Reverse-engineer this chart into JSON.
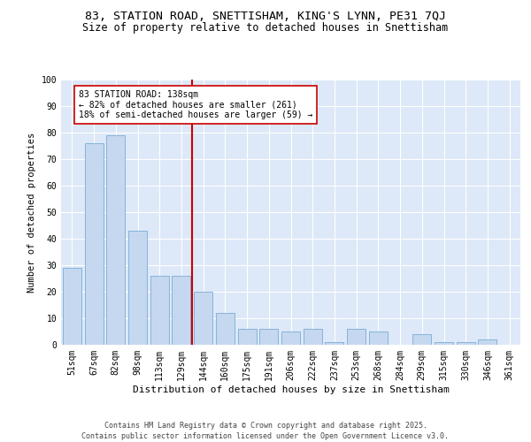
{
  "title1": "83, STATION ROAD, SNETTISHAM, KING'S LYNN, PE31 7QJ",
  "title2": "Size of property relative to detached houses in Snettisham",
  "xlabel": "Distribution of detached houses by size in Snettisham",
  "ylabel": "Number of detached properties",
  "categories": [
    "51sqm",
    "67sqm",
    "82sqm",
    "98sqm",
    "113sqm",
    "129sqm",
    "144sqm",
    "160sqm",
    "175sqm",
    "191sqm",
    "206sqm",
    "222sqm",
    "237sqm",
    "253sqm",
    "268sqm",
    "284sqm",
    "299sqm",
    "315sqm",
    "330sqm",
    "346sqm",
    "361sqm"
  ],
  "values": [
    29,
    76,
    79,
    43,
    26,
    26,
    20,
    12,
    6,
    6,
    5,
    6,
    1,
    6,
    5,
    0,
    4,
    1,
    1,
    2,
    0
  ],
  "bar_color": "#c5d8f0",
  "bar_edge_color": "#7bacd4",
  "background_color": "#dde8f8",
  "grid_color": "#ffffff",
  "red_line_x": 6.0,
  "annotation_text": "83 STATION ROAD: 138sqm\n← 82% of detached houses are smaller (261)\n18% of semi-detached houses are larger (59) →",
  "annotation_box_color": "#ffffff",
  "annotation_box_edge": "#cc0000",
  "red_line_color": "#cc0000",
  "ylim": [
    0,
    100
  ],
  "yticks": [
    0,
    10,
    20,
    30,
    40,
    50,
    60,
    70,
    80,
    90,
    100
  ],
  "footnote1": "Contains HM Land Registry data © Crown copyright and database right 2025.",
  "footnote2": "Contains public sector information licensed under the Open Government Licence v3.0.",
  "title1_fontsize": 9.5,
  "title2_fontsize": 8.5,
  "xlabel_fontsize": 8,
  "ylabel_fontsize": 7.5,
  "tick_fontsize": 7,
  "annotation_fontsize": 7,
  "footnote_fontsize": 6
}
